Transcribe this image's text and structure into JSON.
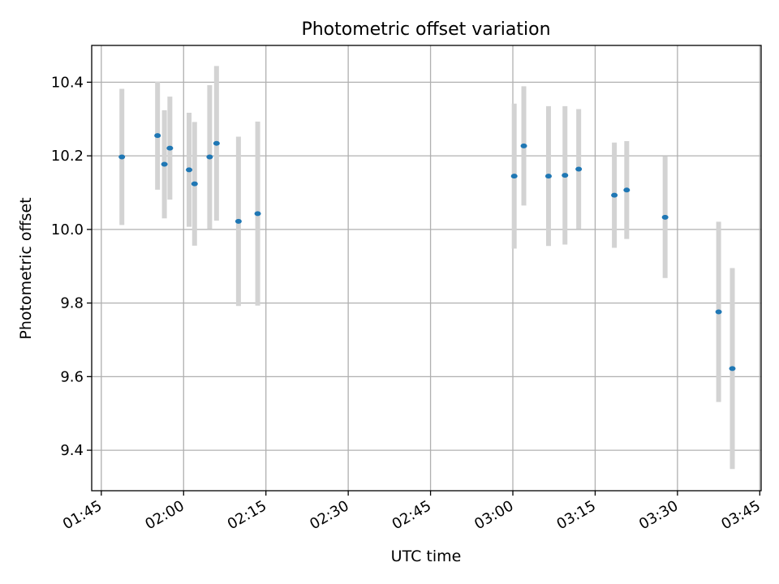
{
  "chart_data": {
    "type": "scatter",
    "title": "Photometric offset variation",
    "xlabel": "UTC time",
    "ylabel": "Photometric offset",
    "x_ticks": [
      "01:45",
      "02:00",
      "02:15",
      "02:30",
      "02:45",
      "03:00",
      "03:15",
      "03:30",
      "03:45"
    ],
    "y_ticks": [
      "9.4",
      "9.6",
      "9.8",
      "10.0",
      "10.2",
      "10.4"
    ],
    "xlim": [
      "01:43:15",
      "03:45:15"
    ],
    "ylim": [
      9.29,
      10.5
    ],
    "grid": true,
    "series": [
      {
        "marker_color": "#1f77b4",
        "errorbar_color": "#d3d3d3",
        "points": [
          {
            "x": "01:48:45",
            "y": 10.197,
            "yerr": 0.185
          },
          {
            "x": "01:55:15",
            "y": 10.255,
            "yerr": 0.147
          },
          {
            "x": "01:56:30",
            "y": 10.177,
            "yerr": 0.147
          },
          {
            "x": "01:57:30",
            "y": 10.221,
            "yerr": 0.14
          },
          {
            "x": "02:01:00",
            "y": 10.162,
            "yerr": 0.155
          },
          {
            "x": "02:02:00",
            "y": 10.124,
            "yerr": 0.168
          },
          {
            "x": "02:04:45",
            "y": 10.197,
            "yerr": 0.195
          },
          {
            "x": "02:06:00",
            "y": 10.234,
            "yerr": 0.21
          },
          {
            "x": "02:10:00",
            "y": 10.022,
            "yerr": 0.23
          },
          {
            "x": "02:13:30",
            "y": 10.043,
            "yerr": 0.25
          },
          {
            "x": "03:00:15",
            "y": 10.145,
            "yerr": 0.197
          },
          {
            "x": "03:02:00",
            "y": 10.227,
            "yerr": 0.162
          },
          {
            "x": "03:06:30",
            "y": 10.145,
            "yerr": 0.19
          },
          {
            "x": "03:09:30",
            "y": 10.147,
            "yerr": 0.188
          },
          {
            "x": "03:12:00",
            "y": 10.164,
            "yerr": 0.163
          },
          {
            "x": "03:18:30",
            "y": 10.093,
            "yerr": 0.143
          },
          {
            "x": "03:20:45",
            "y": 10.107,
            "yerr": 0.133
          },
          {
            "x": "03:27:45",
            "y": 10.033,
            "yerr": 0.165
          },
          {
            "x": "03:37:30",
            "y": 9.776,
            "yerr": 0.245
          },
          {
            "x": "03:40:00",
            "y": 9.622,
            "yerr": 0.273
          }
        ]
      }
    ]
  }
}
